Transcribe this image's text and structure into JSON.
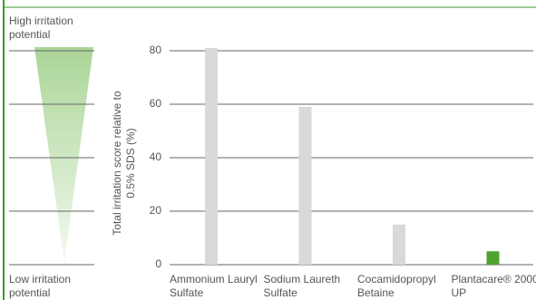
{
  "chart_data": {
    "type": "bar",
    "ylabel": "Total irritation score relative to 0.5% SDS (%)",
    "annotations": [
      "High irritation potential",
      "Low irritation potential"
    ],
    "categories": [
      "Ammonium Lauryl Sulfate",
      "Sodium Laureth Sulfate",
      "Cocamidopropyl Betaine",
      "Plantacare® 2000 UP"
    ],
    "values": [
      81,
      59,
      15,
      5
    ],
    "colors": [
      "#d9d9d9",
      "#d9d9d9",
      "#d9d9d9",
      "#4ea22f"
    ],
    "ylim": [
      0,
      80
    ],
    "yticks": [
      0,
      20,
      40,
      60,
      80
    ],
    "grid": true
  }
}
